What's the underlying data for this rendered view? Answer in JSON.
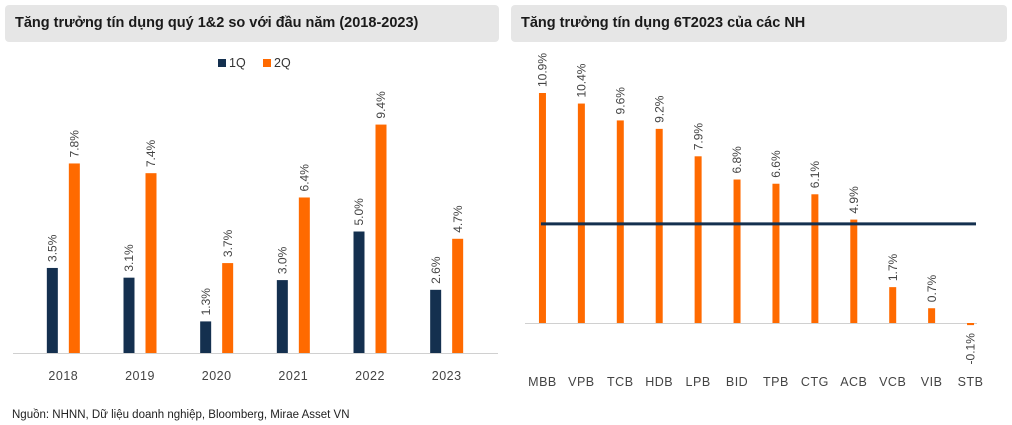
{
  "chart_data": [
    {
      "type": "bar",
      "title": "Tăng trưởng tín dụng quý 1&2 so với đầu năm (2018-2023)",
      "categories": [
        "2018",
        "2019",
        "2020",
        "2021",
        "2022",
        "2023"
      ],
      "series": [
        {
          "name": "1Q",
          "color": "#14304f",
          "values": [
            3.5,
            3.1,
            1.3,
            3.0,
            5.0,
            2.6
          ],
          "labels": [
            "3.5%",
            "3.1%",
            "1.3%",
            "3.0%",
            "5.0%",
            "2.6%"
          ]
        },
        {
          "name": "2Q",
          "color": "#ff6a00",
          "values": [
            7.8,
            7.4,
            3.7,
            6.4,
            9.4,
            4.7
          ],
          "labels": [
            "7.8%",
            "7.4%",
            "3.7%",
            "6.4%",
            "9.4%",
            "4.7%"
          ]
        }
      ],
      "ylim": [
        0,
        10
      ],
      "legend": "top-center",
      "grid": false
    },
    {
      "type": "bar",
      "title": "Tăng trưởng tín dụng 6T2023 của các NH",
      "categories": [
        "MBB",
        "VPB",
        "TCB",
        "HDB",
        "LPB",
        "BID",
        "TPB",
        "CTG",
        "ACB",
        "VCB",
        "VIB",
        "STB"
      ],
      "values": [
        10.9,
        10.4,
        9.6,
        9.2,
        7.9,
        6.8,
        6.6,
        6.1,
        4.9,
        1.7,
        0.7,
        -0.1
      ],
      "labels": [
        "10.9%",
        "10.4%",
        "9.6%",
        "9.2%",
        "7.9%",
        "6.8%",
        "6.6%",
        "6.1%",
        "4.9%",
        "1.7%",
        "0.7%",
        "-0.1%"
      ],
      "bar_color": "#ff6a00",
      "reference_line": {
        "value": 4.7,
        "color": "#14304f"
      },
      "ylim": [
        -1,
        12
      ],
      "grid": false
    }
  ],
  "source": "Nguồn: NHNN, Dữ liệu doanh nghiệp, Bloomberg, Mirae Asset VN"
}
